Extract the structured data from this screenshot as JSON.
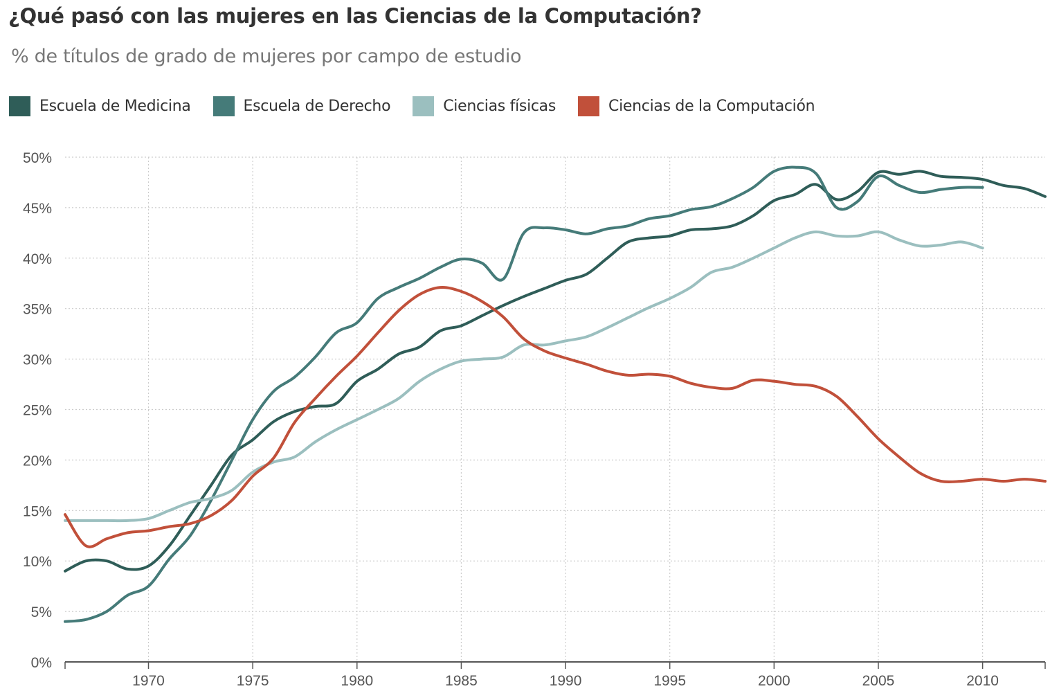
{
  "chart_data": {
    "type": "line",
    "title": "¿Qué pasó con las mujeres en las Ciencias de la Computación?",
    "subtitle": "% de títulos de grado de mujeres por campo de estudio",
    "xlim": [
      1966,
      2013
    ],
    "ylim": [
      0,
      50
    ],
    "x_ticks": [
      1970,
      1975,
      1980,
      1985,
      1990,
      1995,
      2000,
      2005,
      2010
    ],
    "y_ticks": [
      "0%",
      "5%",
      "10%",
      "15%",
      "20%",
      "25%",
      "30%",
      "35%",
      "40%",
      "45%",
      "50%"
    ],
    "grid": true,
    "legend_position": "top-left",
    "series": [
      {
        "name": "Escuela de Medicina",
        "color": "#2f5d58",
        "start": 1966,
        "values": [
          9.0,
          10,
          10,
          9.2,
          9.5,
          11.5,
          14.5,
          17.5,
          20.5,
          22,
          23.8,
          24.8,
          25.3,
          25.6,
          27.8,
          29,
          30.5,
          31.2,
          32.8,
          33.3,
          34.3,
          35.3,
          36.2,
          37,
          37.8,
          38.4,
          40,
          41.6,
          42,
          42.2,
          42.8,
          42.9,
          43.2,
          44.2,
          45.7,
          46.3,
          47.3,
          45.8,
          46.6,
          48.5,
          48.3,
          48.6,
          48.1,
          48.0,
          47.8,
          47.2,
          46.9,
          46.1
        ]
      },
      {
        "name": "Escuela de Derecho",
        "color": "#457b79",
        "start": 1966,
        "values": [
          4,
          4.2,
          5,
          6.6,
          7.5,
          10.2,
          12.5,
          16,
          20,
          24,
          26.8,
          28.2,
          30.2,
          32.6,
          33.6,
          36,
          37.1,
          38,
          39.1,
          39.9,
          39.5,
          37.9,
          42.5,
          43,
          42.8,
          42.4,
          42.9,
          43.2,
          43.9,
          44.2,
          44.8,
          45.1,
          45.9,
          47,
          48.6,
          49,
          48.4,
          45,
          45.6,
          48.1,
          47.2,
          46.5,
          46.8,
          47,
          47
        ]
      },
      {
        "name": "Ciencias físicas",
        "color": "#9bbfbf",
        "start": 1966,
        "values": [
          14,
          14,
          14,
          14,
          14.2,
          15,
          15.8,
          16.2,
          17,
          18.8,
          19.8,
          20.3,
          21.8,
          23,
          24,
          25,
          26.1,
          27.8,
          29,
          29.8,
          30,
          30.2,
          31.4,
          31.4,
          31.8,
          32.2,
          33.1,
          34.1,
          35.1,
          36,
          37.1,
          38.6,
          39.1,
          40,
          41,
          42,
          42.6,
          42.2,
          42.2,
          42.6,
          41.8,
          41.2,
          41.3,
          41.6,
          41
        ]
      },
      {
        "name": "Ciencias de la Computación",
        "color": "#c1503a",
        "start": 1966,
        "values": [
          14.6,
          11.5,
          12.2,
          12.8,
          13,
          13.4,
          13.7,
          14.5,
          16,
          18.4,
          20.2,
          23.7,
          26.1,
          28.3,
          30.3,
          32.6,
          34.8,
          36.4,
          37.1,
          36.7,
          35.7,
          34.2,
          32,
          30.8,
          30.1,
          29.5,
          28.8,
          28.4,
          28.5,
          28.3,
          27.6,
          27.2,
          27.1,
          27.9,
          27.8,
          27.5,
          27.3,
          26.3,
          24.3,
          22.1,
          20.3,
          18.7,
          17.9,
          17.9,
          18.1,
          17.9,
          18.1,
          17.9
        ]
      }
    ]
  }
}
